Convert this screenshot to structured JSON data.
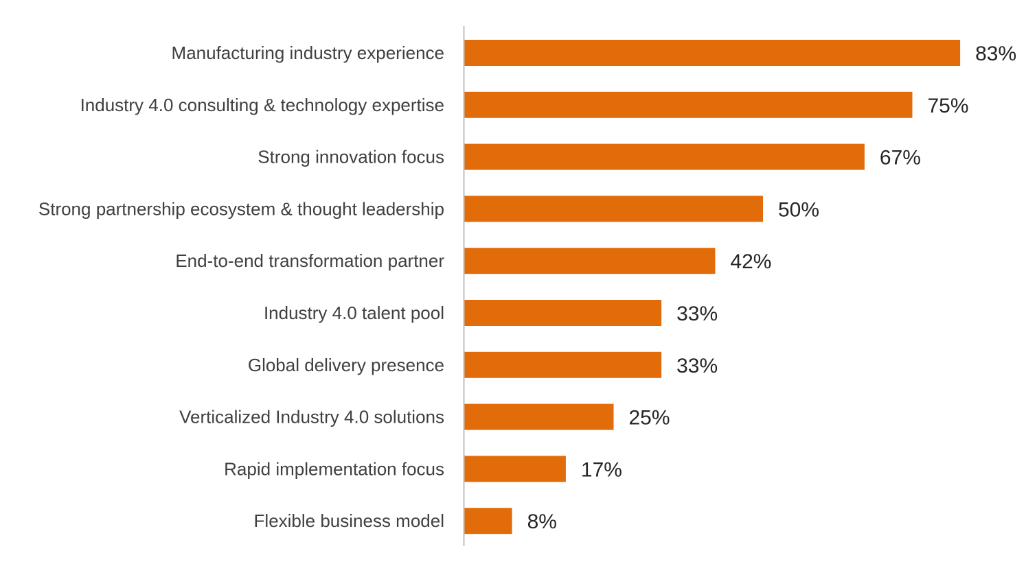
{
  "chart_data": {
    "type": "bar",
    "orientation": "horizontal",
    "categories": [
      "Manufacturing industry experience",
      "Industry 4.0 consulting & technology expertise",
      "Strong innovation focus",
      "Strong partnership ecosystem & thought leadership",
      "End-to-end transformation partner",
      "Industry 4.0 talent pool",
      "Global delivery presence",
      "Verticalized Industry 4.0 solutions",
      "Rapid implementation focus",
      "Flexible business model"
    ],
    "values": [
      83,
      75,
      67,
      50,
      42,
      33,
      33,
      25,
      17,
      8
    ],
    "value_labels": [
      "83%",
      "75%",
      "67%",
      "50%",
      "42%",
      "33%",
      "33%",
      "25%",
      "17%",
      "8%"
    ],
    "title": "",
    "xlabel": "",
    "ylabel": "",
    "xlim": [
      0,
      100
    ],
    "grid": false,
    "legend": "none",
    "bar_color": "#E36C0A",
    "axis_color": "#BFBFBF"
  }
}
